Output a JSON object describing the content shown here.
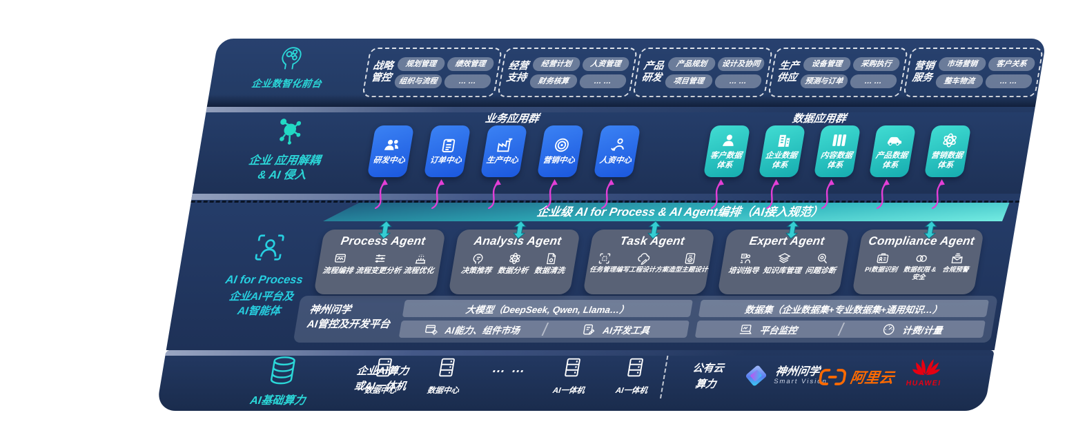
{
  "front_layer": {
    "title": "企业数智化前台",
    "groups": [
      {
        "name": "战略管控",
        "chips": [
          "规划管理",
          "绩效管理",
          "组织与流程",
          "… …"
        ]
      },
      {
        "name": "经营支持",
        "chips": [
          "经营计划",
          "人资管理",
          "财务核算",
          "… …"
        ]
      },
      {
        "name": "产品研发",
        "chips": [
          "产品规划",
          "设计及协同",
          "项目管理",
          "… …"
        ]
      },
      {
        "name": "生产供应",
        "chips": [
          "设备管理",
          "采购执行",
          "预测与订单",
          "… …"
        ]
      },
      {
        "name": "营销服务",
        "chips": [
          "市场营销",
          "客户关系",
          "整车物流",
          "… …"
        ]
      }
    ]
  },
  "app_layer": {
    "title_lines": [
      "企业 应用解耦",
      "& AI 侵入"
    ],
    "business_title": "业务应用群",
    "business_apps": [
      {
        "label_lines": [
          "研发中心"
        ],
        "icon": "team"
      },
      {
        "label_lines": [
          "订单中心"
        ],
        "icon": "clipboard"
      },
      {
        "label_lines": [
          "生产中心"
        ],
        "icon": "factory"
      },
      {
        "label_lines": [
          "营销中心"
        ],
        "icon": "target"
      },
      {
        "label_lines": [
          "人资中心"
        ],
        "icon": "hr-person"
      }
    ],
    "data_title": "数据应用群",
    "data_apps": [
      {
        "label_lines": [
          "客户数据",
          "体系"
        ],
        "icon": "customer"
      },
      {
        "label_lines": [
          "企业数据",
          "体系"
        ],
        "icon": "enterprise"
      },
      {
        "label_lines": [
          "内容数据",
          "体系"
        ],
        "icon": "content-columns"
      },
      {
        "label_lines": [
          "产品数据",
          "体系"
        ],
        "icon": "car"
      },
      {
        "label_lines": [
          "营销数据",
          "体系"
        ],
        "icon": "atom"
      }
    ]
  },
  "ai_layer": {
    "bus_bar": "企业级 AI for Process & AI Agent编排（AI接入规范）",
    "label_en": "AI for Process",
    "label_zh_lines": [
      "企业AI平台及",
      "AI智能体"
    ],
    "agents": [
      {
        "title": "Process Agent",
        "items": [
          {
            "label_lines": [
              "流程编排"
            ],
            "icon": "flow-monitor"
          },
          {
            "label_lines": [
              "流程变更分析"
            ],
            "icon": "sliders"
          },
          {
            "label_lines": [
              "流程优化"
            ],
            "icon": "machine"
          }
        ]
      },
      {
        "title": "Analysis Agent",
        "items": [
          {
            "label_lines": [
              "决策推荐"
            ],
            "icon": "head-chat"
          },
          {
            "label_lines": [
              "数据分析"
            ],
            "icon": "atom"
          },
          {
            "label_lines": [
              "数据清洗"
            ],
            "icon": "doc-gear"
          }
        ]
      },
      {
        "title": "Task Agent",
        "items": [
          {
            "label_lines": [
              "任务管理"
            ],
            "icon": "grid-scan"
          },
          {
            "label_lines": [
              "编写工程设计方案"
            ],
            "icon": "cloud-pen"
          },
          {
            "label_lines": [
              "造型主题设计"
            ],
            "icon": "tablet-check"
          }
        ]
      },
      {
        "title": "Expert Agent",
        "items": [
          {
            "label_lines": [
              "培训指导"
            ],
            "icon": "teach"
          },
          {
            "label_lines": [
              "知识库管理"
            ],
            "icon": "layers"
          },
          {
            "label_lines": [
              "问题诊断"
            ],
            "icon": "magnify-gear"
          }
        ]
      },
      {
        "title": "Compliance Agent",
        "items": [
          {
            "label_lines": [
              "PI数据识别"
            ],
            "icon": "id-card"
          },
          {
            "label_lines": [
              "数据权限 &",
              "安全"
            ],
            "icon": "lock-link"
          },
          {
            "label_lines": [
              "合规预警"
            ],
            "icon": "mail-alert"
          }
        ]
      }
    ],
    "platform": {
      "label_lines": [
        "神州问学",
        "AI管控及开发平台"
      ],
      "model_bar": "大模型（DeepSeek, Qwen, Llama…）",
      "model_cells": [
        {
          "label": "AI能力、组件市场",
          "icon": "window-gear"
        },
        {
          "label": "AI开发工具",
          "icon": "tool-pen"
        }
      ],
      "dataset_bar": "数据集（企业数据集+专业数据集+通用知识…）",
      "dataset_cells": [
        {
          "label": "平台监控",
          "icon": "monitor"
        },
        {
          "label": "计费/计量",
          "icon": "gauge"
        }
      ]
    }
  },
  "infra_layer": {
    "title": "AI基础算力",
    "enterprise_lines": [
      "企业AI算力",
      "或AI一体机"
    ],
    "nodes": [
      {
        "label": "数据中心",
        "icon": "server"
      },
      {
        "label": "数据中心",
        "icon": "server"
      },
      {
        "label": "… …",
        "icon": "dots"
      },
      {
        "label": "AI一体机",
        "icon": "server"
      },
      {
        "label": "AI一体机",
        "icon": "server"
      }
    ],
    "public_cloud_lines": [
      "公有云",
      "算力"
    ],
    "vendors": {
      "szwx_name": "神州问学",
      "szwx_sub": "Smart Vision",
      "aliyun": "阿里云",
      "huawei": "HUAWEI"
    }
  },
  "colors": {
    "accent_teal": "#2bd7d8",
    "card_blue": "#2268e8",
    "card_teal": "#2ec7c9",
    "magenta": "#e33fd6",
    "panel_navy": "#243c68"
  }
}
